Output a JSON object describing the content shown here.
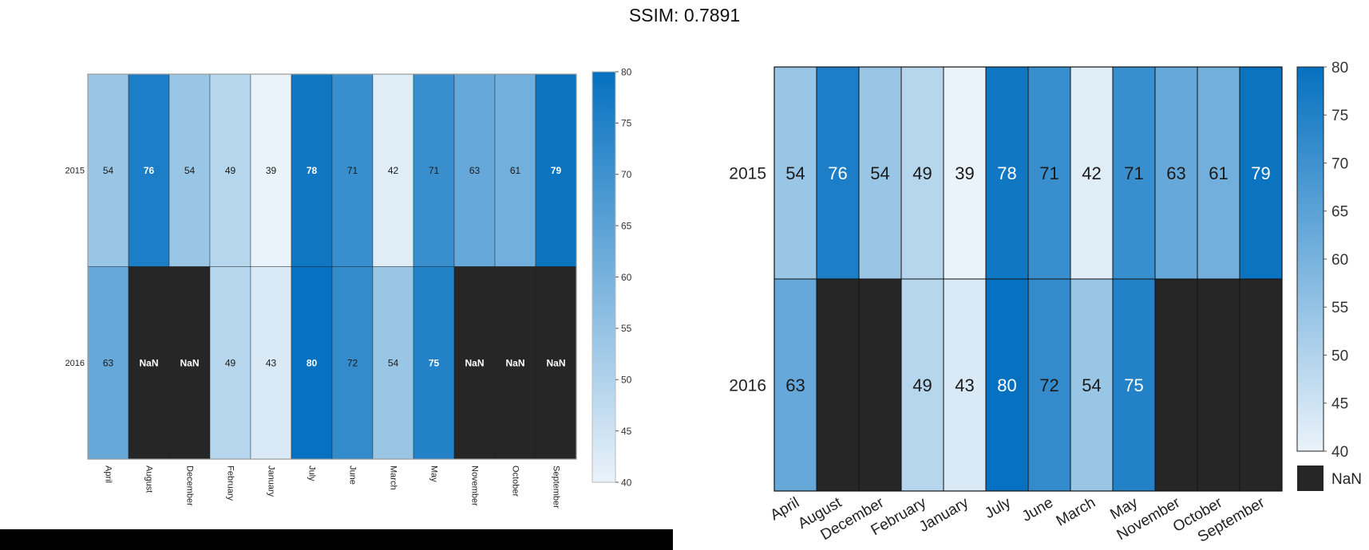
{
  "title": "SSIM: 0.7891",
  "colors": {
    "low": "#eaf3fa",
    "high": "#0571c0",
    "nan": "#262626",
    "grid_left": "#1a1a1a",
    "text_dark": "#1a1a1a",
    "text_light": "#ffffff"
  },
  "chart_data": [
    {
      "type": "heatmap",
      "panel": "left",
      "title": "",
      "xlabel": "",
      "ylabel": "",
      "x_categories": [
        "April",
        "August",
        "December",
        "February",
        "January",
        "July",
        "June",
        "March",
        "May",
        "November",
        "October",
        "September"
      ],
      "y_categories": [
        "2015",
        "2016"
      ],
      "values": [
        [
          54,
          76,
          54,
          49,
          39,
          78,
          71,
          42,
          71,
          63,
          61,
          79
        ],
        [
          63,
          null,
          null,
          49,
          43,
          80,
          72,
          54,
          75,
          null,
          null,
          null
        ]
      ],
      "cell_labels": [
        [
          "54",
          "76",
          "54",
          "49",
          "39",
          "78",
          "71",
          "42",
          "71",
          "63",
          "61",
          "79"
        ],
        [
          "63",
          "NaN",
          "NaN",
          "49",
          "43",
          "80",
          "72",
          "54",
          "75",
          "NaN",
          "NaN",
          "NaN"
        ]
      ],
      "colorbar": {
        "range": [
          40,
          80
        ],
        "ticks": [
          "40",
          "45",
          "50",
          "55",
          "60",
          "65",
          "70",
          "75",
          "80"
        ]
      },
      "x_tick_rotation": "vertical"
    },
    {
      "type": "heatmap",
      "panel": "right",
      "title": "",
      "xlabel": "",
      "ylabel": "",
      "x_categories": [
        "April",
        "August",
        "December",
        "February",
        "January",
        "July",
        "June",
        "March",
        "May",
        "November",
        "October",
        "September"
      ],
      "y_categories": [
        "2015",
        "2016"
      ],
      "values": [
        [
          54,
          76,
          54,
          49,
          39,
          78,
          71,
          42,
          71,
          63,
          61,
          79
        ],
        [
          63,
          null,
          null,
          49,
          43,
          80,
          72,
          54,
          75,
          null,
          null,
          null
        ]
      ],
      "cell_labels": [
        [
          "54",
          "76",
          "54",
          "49",
          "39",
          "78",
          "71",
          "42",
          "71",
          "63",
          "61",
          "79"
        ],
        [
          "63",
          "",
          "",
          "49",
          "43",
          "80",
          "72",
          "54",
          "75",
          "",
          "",
          ""
        ]
      ],
      "colorbar": {
        "range": [
          40,
          80
        ],
        "ticks": [
          "40",
          "45",
          "50",
          "55",
          "60",
          "65",
          "70",
          "75",
          "80"
        ]
      },
      "nan_legend_label": "NaN",
      "x_tick_rotation": "diagonal"
    }
  ]
}
